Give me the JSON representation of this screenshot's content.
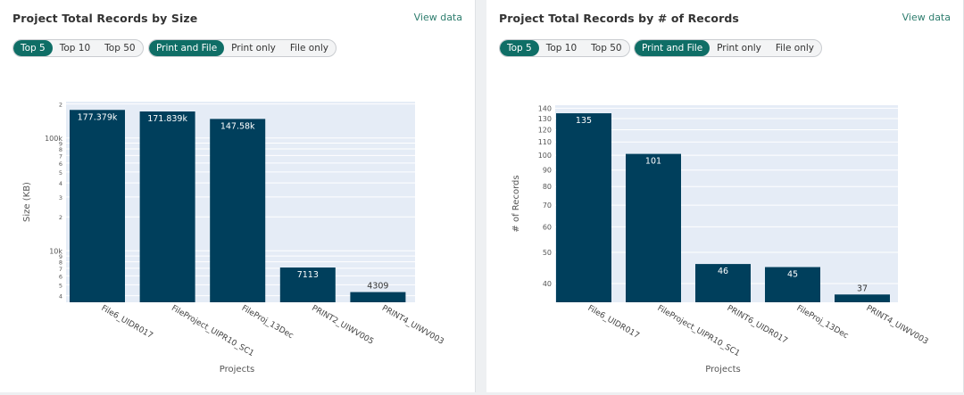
{
  "left": {
    "title": "Project Total Records by Size",
    "view_data": "View data",
    "top_buttons": [
      "Top 5",
      "Top 10",
      "Top 50"
    ],
    "type_buttons": [
      "Print and File",
      "Print only",
      "File only"
    ],
    "active_top": 0,
    "active_type": 0
  },
  "right": {
    "title": "Project Total Records by # of Records",
    "view_data": "View data",
    "top_buttons": [
      "Top 5",
      "Top 10",
      "Top 50"
    ],
    "type_buttons": [
      "Print and File",
      "Print only",
      "File only"
    ],
    "active_top": 0,
    "active_type": 0
  },
  "colors": {
    "bar": "#003f5c",
    "plot_bg": "#e5ecf6",
    "accent": "#0f6e66",
    "link": "#2e7d6e"
  },
  "chart_data": [
    {
      "type": "bar",
      "scale": "log",
      "title": "Project Total Records by Size",
      "xlabel": "Projects",
      "ylabel": "Size (KB)",
      "categories": [
        "File6_UIDR017",
        "FileProject_UIPR10_SC1",
        "FileProj_13Dec",
        "PRINT2_UIWV005",
        "PRINT4_UIWV003"
      ],
      "values": [
        177379,
        171839,
        147580,
        7113,
        4309
      ],
      "data_labels": [
        "177.379k",
        "171.839k",
        "147.58k",
        "7113",
        "4309"
      ],
      "ylim": [
        3500,
        210000
      ],
      "yticks": [
        {
          "v": 4000,
          "t": "4"
        },
        {
          "v": 5000,
          "t": "5"
        },
        {
          "v": 6000,
          "t": "6"
        },
        {
          "v": 7000,
          "t": "7"
        },
        {
          "v": 8000,
          "t": "8"
        },
        {
          "v": 9000,
          "t": "9"
        },
        {
          "v": 10000,
          "t": "10k"
        },
        {
          "v": 20000,
          "t": "2"
        },
        {
          "v": 30000,
          "t": "3"
        },
        {
          "v": 40000,
          "t": "4"
        },
        {
          "v": 50000,
          "t": "5"
        },
        {
          "v": 60000,
          "t": "6"
        },
        {
          "v": 70000,
          "t": "7"
        },
        {
          "v": 80000,
          "t": "8"
        },
        {
          "v": 90000,
          "t": "9"
        },
        {
          "v": 100000,
          "t": "100k"
        },
        {
          "v": 200000,
          "t": "2"
        }
      ]
    },
    {
      "type": "bar",
      "scale": "log",
      "title": "Project Total Records by # of Records",
      "xlabel": "Projects",
      "ylabel": "# of Records",
      "categories": [
        "File6_UIDR017",
        "FileProject_UIPR10_SC1",
        "PRINT6_UIDR017",
        "FileProj_13Dec",
        "PRINT4_UIWV003"
      ],
      "values": [
        135,
        101,
        46,
        45,
        37
      ],
      "data_labels": [
        "135",
        "101",
        "46",
        "45",
        "37"
      ],
      "ylim": [
        35,
        143
      ],
      "yticks": [
        {
          "v": 40,
          "t": "40"
        },
        {
          "v": 50,
          "t": "50"
        },
        {
          "v": 60,
          "t": "60"
        },
        {
          "v": 70,
          "t": "70"
        },
        {
          "v": 80,
          "t": "80"
        },
        {
          "v": 90,
          "t": "90"
        },
        {
          "v": 100,
          "t": "100"
        },
        {
          "v": 110,
          "t": "110"
        },
        {
          "v": 120,
          "t": "120"
        },
        {
          "v": 130,
          "t": "130"
        },
        {
          "v": 140,
          "t": "140"
        }
      ]
    }
  ]
}
